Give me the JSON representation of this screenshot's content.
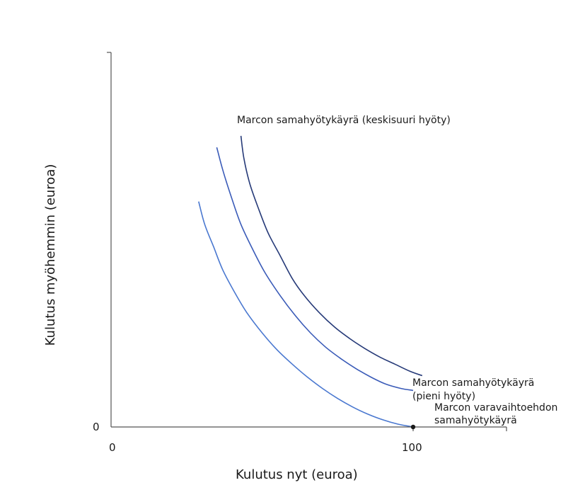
{
  "chart_data": {
    "type": "line",
    "title": "",
    "xlabel": "Kulutus nyt (euroa)",
    "ylabel": "Kulutus myöhemmin (euroa)",
    "xlim": [
      0,
      131
    ],
    "ylim": [
      0,
      131
    ],
    "x_ticks": [
      "0",
      "100"
    ],
    "y_ticks": [
      "0"
    ],
    "grid": false,
    "series": [
      {
        "key": "reservation",
        "color": "#4a78d0",
        "points": [
          [
            29,
            79
          ],
          [
            31,
            71
          ],
          [
            34,
            63
          ],
          [
            37,
            55
          ],
          [
            41,
            47
          ],
          [
            45,
            40
          ],
          [
            50,
            33
          ],
          [
            55,
            27
          ],
          [
            60,
            22
          ],
          [
            65,
            17.5
          ],
          [
            70,
            13.5
          ],
          [
            75,
            10
          ],
          [
            80,
            7
          ],
          [
            85,
            4.5
          ],
          [
            90,
            2.5
          ],
          [
            95,
            1
          ],
          [
            100,
            0
          ]
        ]
      },
      {
        "key": "low",
        "color": "#3a5bb8",
        "points": [
          [
            35,
            98
          ],
          [
            37,
            90
          ],
          [
            40,
            80
          ],
          [
            43,
            71
          ],
          [
            47,
            62
          ],
          [
            51,
            54
          ],
          [
            56,
            46
          ],
          [
            61,
            39
          ],
          [
            66,
            33
          ],
          [
            71,
            28
          ],
          [
            76,
            24
          ],
          [
            81,
            20.5
          ],
          [
            86,
            17.5
          ],
          [
            91,
            15
          ],
          [
            96,
            13.5
          ],
          [
            100,
            12.8
          ]
        ]
      },
      {
        "key": "medium",
        "color": "#263a78",
        "points": [
          [
            43,
            102
          ],
          [
            44,
            94
          ],
          [
            46,
            85
          ],
          [
            49,
            76
          ],
          [
            52,
            68
          ],
          [
            56,
            60
          ],
          [
            60,
            52
          ],
          [
            64,
            46
          ],
          [
            69,
            40
          ],
          [
            74,
            35
          ],
          [
            79,
            31
          ],
          [
            84,
            27.5
          ],
          [
            89,
            24.5
          ],
          [
            94,
            22
          ],
          [
            99,
            19.5
          ],
          [
            103,
            18
          ]
        ]
      }
    ],
    "marked_point": {
      "x": 100,
      "y": 0
    },
    "annotations": {
      "medium": "Marcon samahyötykäyrä (keskisuuri hyöty)",
      "low_line1": "Marcon samahyötykäyrä",
      "low_line2": "(pieni hyöty)",
      "reservation_line1": "Marcon varavaihtoehdon",
      "reservation_line2": "samahyötykäyrä"
    }
  }
}
